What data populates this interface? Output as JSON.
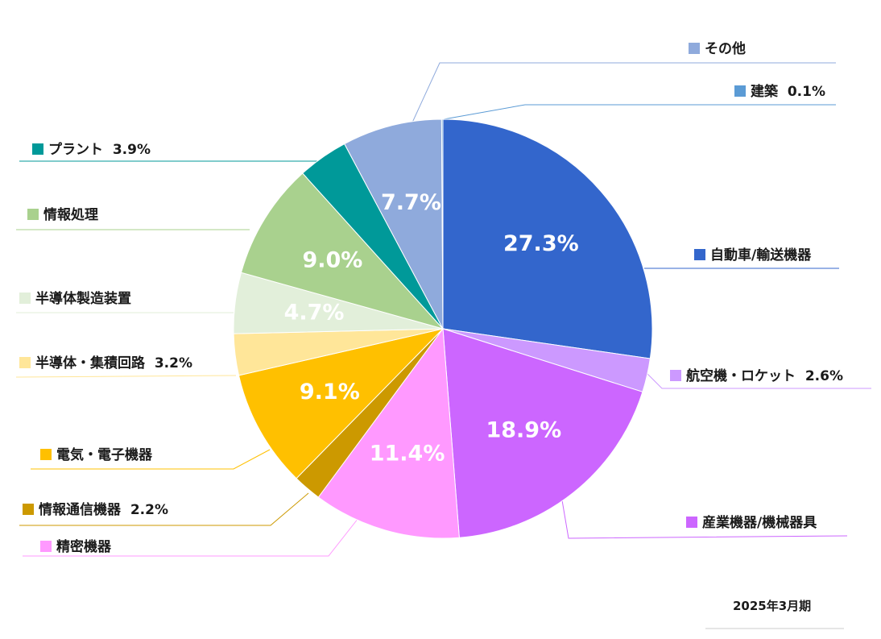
{
  "chart_data": {
    "type": "pie",
    "title": "",
    "period": "2025年3月期",
    "slices": [
      {
        "name": "自動車/輸送機器",
        "value": 27.3,
        "label": "27.3%",
        "legend_value": "",
        "color": "#3366cc"
      },
      {
        "name": "航空機・ロケット",
        "value": 2.6,
        "label": "",
        "legend_value": "2.6%",
        "color": "#cc99ff"
      },
      {
        "name": "産業機器/機械器具",
        "value": 18.9,
        "label": "18.9%",
        "legend_value": "",
        "color": "#cc66ff"
      },
      {
        "name": "精密機器",
        "value": 11.4,
        "label": "11.4%",
        "legend_value": "",
        "color": "#ff99ff"
      },
      {
        "name": "情報通信機器",
        "value": 2.2,
        "label": "",
        "legend_value": "2.2%",
        "color": "#cc9900"
      },
      {
        "name": "電気・電子機器",
        "value": 9.1,
        "label": "9.1%",
        "legend_value": "",
        "color": "#ffc000"
      },
      {
        "name": "半導体・集積回路",
        "value": 3.2,
        "label": "",
        "legend_value": "3.2%",
        "color": "#ffe699"
      },
      {
        "name": "半導体製造装置",
        "value": 4.7,
        "label": "4.7%",
        "legend_value": "",
        "color": "#e2efda"
      },
      {
        "name": "情報処理",
        "value": 9.0,
        "label": "9.0%",
        "legend_value": "",
        "color": "#a9d18e"
      },
      {
        "name": "プラント",
        "value": 3.9,
        "label": "",
        "legend_value": "3.9%",
        "color": "#009999"
      },
      {
        "name": "その他",
        "value": 7.7,
        "label": "7.7%",
        "legend_value": "",
        "color": "#8faadc"
      },
      {
        "name": "建築",
        "value": 0.1,
        "label": "",
        "legend_value": "0.1%",
        "color": "#5b9bd5"
      }
    ]
  }
}
